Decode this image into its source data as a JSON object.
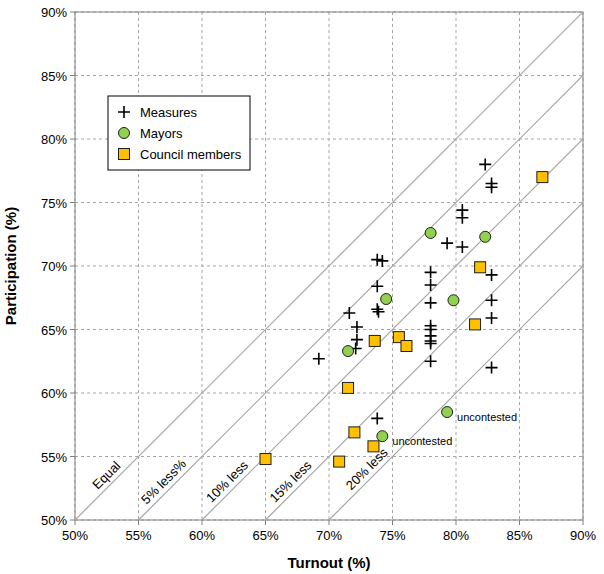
{
  "chart_data": {
    "type": "scatter",
    "x_label": "Turnout (%)",
    "y_label": "Participation (%)",
    "xlim": [
      50,
      90
    ],
    "ylim": [
      50,
      90
    ],
    "xticks": [
      {
        "value": 50,
        "label": "50%"
      },
      {
        "value": 55,
        "label": "55%"
      },
      {
        "value": 60,
        "label": "60%"
      },
      {
        "value": 65,
        "label": "65%"
      },
      {
        "value": 70,
        "label": "70%"
      },
      {
        "value": 75,
        "label": "75%"
      },
      {
        "value": 80,
        "label": "80%"
      },
      {
        "value": 85,
        "label": "85%"
      },
      {
        "value": 90,
        "label": "90%"
      }
    ],
    "yticks": [
      {
        "value": 50,
        "label": "50%"
      },
      {
        "value": 55,
        "label": "55%"
      },
      {
        "value": 60,
        "label": "60%"
      },
      {
        "value": 65,
        "label": "65%"
      },
      {
        "value": 70,
        "label": "70%"
      },
      {
        "value": 75,
        "label": "75%"
      },
      {
        "value": 80,
        "label": "80%"
      },
      {
        "value": 85,
        "label": "85%"
      },
      {
        "value": 90,
        "label": "90%"
      }
    ],
    "grid": true,
    "legend": "upper left",
    "reference_lines": [
      {
        "label": "Equal",
        "value": 0
      },
      {
        "label": "5% less%",
        "value": -5
      },
      {
        "label": "10% less",
        "value": -10
      },
      {
        "label": "15% less",
        "value": -15
      },
      {
        "label": "20% less",
        "value": -20
      }
    ],
    "annotations": [
      {
        "text": "uncontested",
        "x": 79.3,
        "y": 58.5
      },
      {
        "text": "uncontested",
        "x": 74.2,
        "y": 56.6
      }
    ],
    "series": [
      {
        "name": "Measures",
        "color": "#000000",
        "marker": "plus",
        "x": [
          69.2,
          71.6,
          72.2,
          72.2,
          72.1,
          73.8,
          74.2,
          73.8,
          73.8,
          73.9,
          73.8,
          78.0,
          78.0,
          78.0,
          78.0,
          78.0,
          78.0,
          78.0,
          78.0,
          78.0,
          79.3,
          80.5,
          80.5,
          80.5,
          82.3,
          82.8,
          82.8,
          82.8,
          82.8,
          82.8,
          82.8
        ],
        "values": [
          62.7,
          66.3,
          65.2,
          64.2,
          63.5,
          70.5,
          70.4,
          68.4,
          66.6,
          66.4,
          58.0,
          69.5,
          68.5,
          67.1,
          65.3,
          65.0,
          64.5,
          64.1,
          63.9,
          62.5,
          71.8,
          74.4,
          73.8,
          71.5,
          78.0,
          76.5,
          76.2,
          69.3,
          67.3,
          65.9,
          62.0
        ]
      },
      {
        "name": "Mayors",
        "color": "#92d050",
        "marker": "circle",
        "x": [
          71.5,
          74.5,
          78.0,
          74.2,
          79.3,
          79.8,
          82.3
        ],
        "values": [
          63.3,
          67.4,
          72.6,
          56.6,
          58.5,
          67.3,
          72.3
        ]
      },
      {
        "name": "Council members",
        "color": "#ffc000",
        "marker": "square",
        "x": [
          65.0,
          70.8,
          71.5,
          72.0,
          73.5,
          73.6,
          75.5,
          76.1,
          81.9,
          81.5,
          86.8
        ],
        "values": [
          54.8,
          54.6,
          60.4,
          56.9,
          55.8,
          64.1,
          64.4,
          63.7,
          69.9,
          65.4,
          77.0
        ]
      }
    ]
  }
}
